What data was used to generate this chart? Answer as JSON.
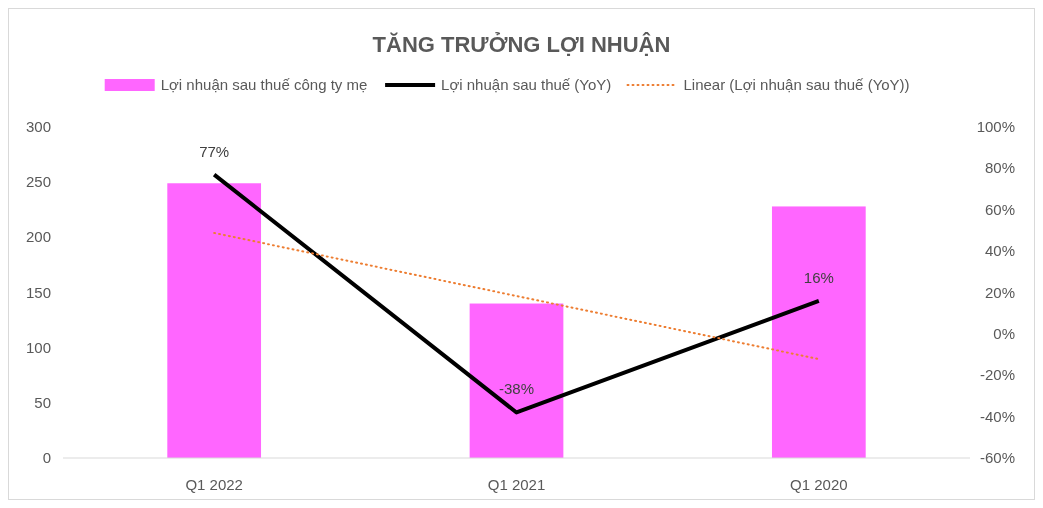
{
  "chart_data": {
    "type": "bar",
    "title": "TĂNG TRƯỞNG LỢI NHUẬN",
    "categories": [
      "Q1 2022",
      "Q1 2021",
      "Q1 2020"
    ],
    "series": [
      {
        "name": "Lợi nhuận sau thuế công ty mẹ",
        "color": "#ff66ff",
        "values": [
          249,
          140,
          228
        ]
      },
      {
        "name": "Lợi nhuận sau thuế (YoY)",
        "type": "line",
        "axis": "y2",
        "color": "#000000",
        "values": [
          77,
          -38,
          16
        ],
        "value_labels": [
          "77%",
          "-38%",
          "16%"
        ],
        "line_style": "solid"
      },
      {
        "name": "Linear (Lợi nhuận sau thuế (YoY))",
        "type": "line",
        "axis": "y2",
        "color": "#ed7d31",
        "values": [
          48.8,
          18.3,
          -12.2
        ],
        "line_style": "dotted"
      }
    ],
    "ylim": [
      0,
      300
    ],
    "yticks": [
      0,
      50,
      100,
      150,
      200,
      250,
      300
    ],
    "y2lim": [
      -60,
      100
    ],
    "y2ticks": [
      {
        "value": -60,
        "label": "-60%"
      },
      {
        "value": -40,
        "label": "-40%"
      },
      {
        "value": -20,
        "label": "-20%"
      },
      {
        "value": 0,
        "label": "0%"
      },
      {
        "value": 20,
        "label": "20%"
      },
      {
        "value": 40,
        "label": "40%"
      },
      {
        "value": 60,
        "label": "60%"
      },
      {
        "value": 80,
        "label": "80%"
      },
      {
        "value": 100,
        "label": "100%"
      }
    ],
    "legend": "top",
    "grid": false
  }
}
